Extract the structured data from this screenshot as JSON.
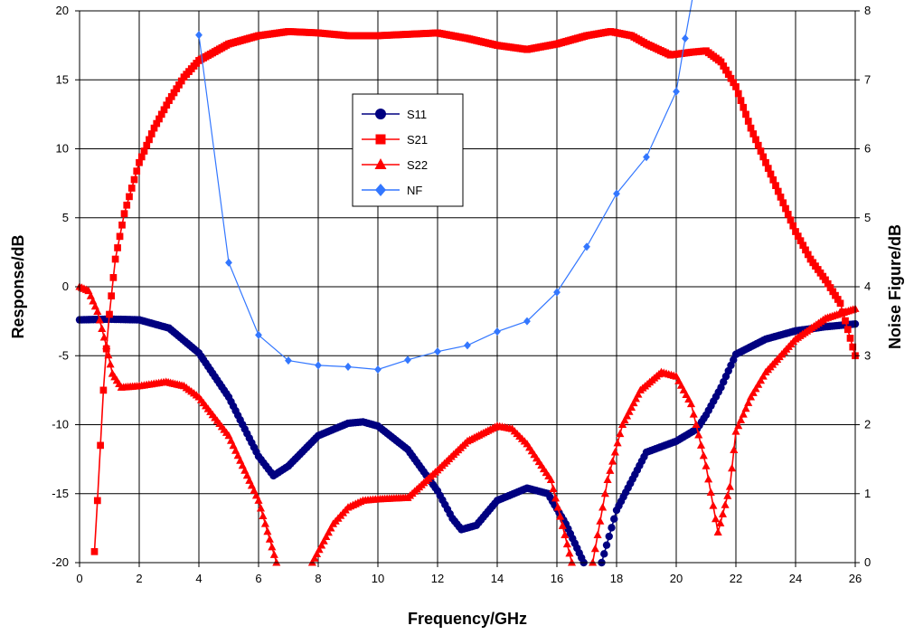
{
  "chart_data": {
    "type": "line",
    "title": "",
    "xlabel": "Frequency/GHz",
    "ylabel": "Response/dB",
    "y2label": "Noise Figure/dB",
    "xlim": [
      0,
      26
    ],
    "ylim": [
      -20,
      20
    ],
    "y2lim": [
      0,
      8
    ],
    "xticks": [
      0,
      2,
      4,
      6,
      8,
      10,
      12,
      14,
      16,
      18,
      20,
      22,
      24,
      26
    ],
    "yticks": [
      -20,
      -15,
      -10,
      -5,
      0,
      5,
      10,
      15,
      20
    ],
    "y2ticks": [
      0,
      1,
      2,
      3,
      4,
      5,
      6,
      7,
      8
    ],
    "grid": true,
    "legend_position": "center-left",
    "series": [
      {
        "name": "S11",
        "axis": "left",
        "color": "#000080",
        "marker": "circle",
        "dense": true,
        "points": [
          [
            0,
            -2.4
          ],
          [
            1,
            -2.35
          ],
          [
            2,
            -2.4
          ],
          [
            3,
            -3.0
          ],
          [
            4,
            -4.8
          ],
          [
            5,
            -8.0
          ],
          [
            6,
            -12.3
          ],
          [
            6.5,
            -13.7
          ],
          [
            7,
            -13.0
          ],
          [
            8,
            -10.8
          ],
          [
            9,
            -9.9
          ],
          [
            9.5,
            -9.8
          ],
          [
            10,
            -10.1
          ],
          [
            11,
            -11.8
          ],
          [
            12,
            -14.8
          ],
          [
            12.5,
            -16.8
          ],
          [
            12.8,
            -17.6
          ],
          [
            13.3,
            -17.3
          ],
          [
            14,
            -15.5
          ],
          [
            15,
            -14.6
          ],
          [
            15.7,
            -15.0
          ],
          [
            16.3,
            -17.2
          ],
          [
            16.9,
            -20
          ]
        ],
        "points2": [
          [
            17.5,
            -20
          ],
          [
            18,
            -16.2
          ],
          [
            19,
            -12.0
          ],
          [
            20,
            -11.2
          ],
          [
            20.7,
            -10.3
          ],
          [
            21,
            -9.3
          ],
          [
            21.5,
            -7.3
          ],
          [
            22,
            -4.9
          ],
          [
            23,
            -3.8
          ],
          [
            24,
            -3.2
          ],
          [
            25,
            -2.9
          ],
          [
            26,
            -2.7
          ]
        ]
      },
      {
        "name": "S21",
        "axis": "left",
        "color": "#ff0000",
        "marker": "square",
        "dense": true,
        "points": [
          [
            0.5,
            -19.2
          ],
          [
            0.6,
            -15.5
          ],
          [
            0.7,
            -11.5
          ],
          [
            0.8,
            -7.5
          ],
          [
            0.9,
            -4.5
          ],
          [
            1.0,
            -2.0
          ],
          [
            1.2,
            2.0
          ],
          [
            1.5,
            5.3
          ],
          [
            2,
            9.0
          ],
          [
            2.5,
            11.5
          ],
          [
            3,
            13.5
          ],
          [
            3.5,
            15.2
          ],
          [
            4,
            16.4
          ],
          [
            5,
            17.6
          ],
          [
            6,
            18.2
          ],
          [
            7,
            18.5
          ],
          [
            8,
            18.4
          ],
          [
            9,
            18.2
          ],
          [
            10,
            18.2
          ],
          [
            11,
            18.3
          ],
          [
            12,
            18.4
          ],
          [
            13,
            18.0
          ],
          [
            14,
            17.5
          ],
          [
            15,
            17.2
          ],
          [
            16,
            17.6
          ],
          [
            17,
            18.2
          ],
          [
            17.8,
            18.5
          ],
          [
            18.5,
            18.2
          ],
          [
            19,
            17.6
          ],
          [
            19.8,
            16.8
          ],
          [
            20.5,
            17.0
          ],
          [
            21,
            17.1
          ],
          [
            21.5,
            16.3
          ],
          [
            22,
            14.5
          ],
          [
            22.5,
            11.5
          ],
          [
            23,
            9.0
          ],
          [
            23.5,
            6.5
          ],
          [
            24,
            4.0
          ],
          [
            24.5,
            2.0
          ],
          [
            25,
            0.5
          ],
          [
            25.5,
            -1.2
          ],
          [
            26,
            -5.0
          ]
        ]
      },
      {
        "name": "S22",
        "axis": "left",
        "color": "#ff0000",
        "marker": "triangle",
        "dense": true,
        "points": [
          [
            0,
            0
          ],
          [
            0.3,
            -0.3
          ],
          [
            0.6,
            -1.8
          ],
          [
            0.9,
            -4.3
          ],
          [
            1.1,
            -6.3
          ],
          [
            1.4,
            -7.3
          ],
          [
            2,
            -7.2
          ],
          [
            2.9,
            -6.9
          ],
          [
            3.5,
            -7.2
          ],
          [
            4,
            -8.0
          ],
          [
            5,
            -10.8
          ],
          [
            6,
            -15.5
          ],
          [
            6.6,
            -20
          ]
        ],
        "points2": [
          [
            7.8,
            -20
          ],
          [
            8.5,
            -17.2
          ],
          [
            9,
            -16.0
          ],
          [
            9.5,
            -15.5
          ],
          [
            10,
            -15.4
          ],
          [
            11,
            -15.3
          ],
          [
            12,
            -13.3
          ],
          [
            13,
            -11.2
          ],
          [
            14,
            -10.1
          ],
          [
            14.5,
            -10.3
          ],
          [
            15,
            -11.4
          ],
          [
            15.8,
            -14.0
          ],
          [
            16.5,
            -20
          ]
        ],
        "points3": [
          [
            17.2,
            -20
          ],
          [
            17.7,
            -14.0
          ],
          [
            18.2,
            -10.0
          ],
          [
            18.8,
            -7.5
          ],
          [
            19.5,
            -6.2
          ],
          [
            20,
            -6.5
          ],
          [
            20.5,
            -8.5
          ],
          [
            21,
            -13.0
          ],
          [
            21.4,
            -17.8
          ],
          [
            21.8,
            -14.5
          ],
          [
            22,
            -10.5
          ],
          [
            22.5,
            -8.0
          ],
          [
            23,
            -6.2
          ],
          [
            24,
            -3.8
          ],
          [
            25,
            -2.3
          ],
          [
            26,
            -1.6
          ]
        ]
      },
      {
        "name": "NF",
        "axis": "right",
        "color": "#3377ff",
        "marker": "diamond",
        "dense": false,
        "points": [
          [
            4,
            7.65
          ],
          [
            5,
            4.35
          ],
          [
            6,
            3.3
          ],
          [
            7,
            2.93
          ],
          [
            8,
            2.86
          ],
          [
            9,
            2.84
          ],
          [
            10,
            2.8
          ],
          [
            11,
            2.94
          ],
          [
            12,
            3.06
          ],
          [
            13,
            3.15
          ],
          [
            14,
            3.35
          ],
          [
            15,
            3.5
          ],
          [
            16,
            3.92
          ],
          [
            17,
            4.58
          ],
          [
            18,
            5.35
          ],
          [
            19,
            5.88
          ],
          [
            20,
            6.83
          ],
          [
            20.3,
            7.6
          ],
          [
            20.55,
            8.2
          ]
        ]
      }
    ]
  }
}
